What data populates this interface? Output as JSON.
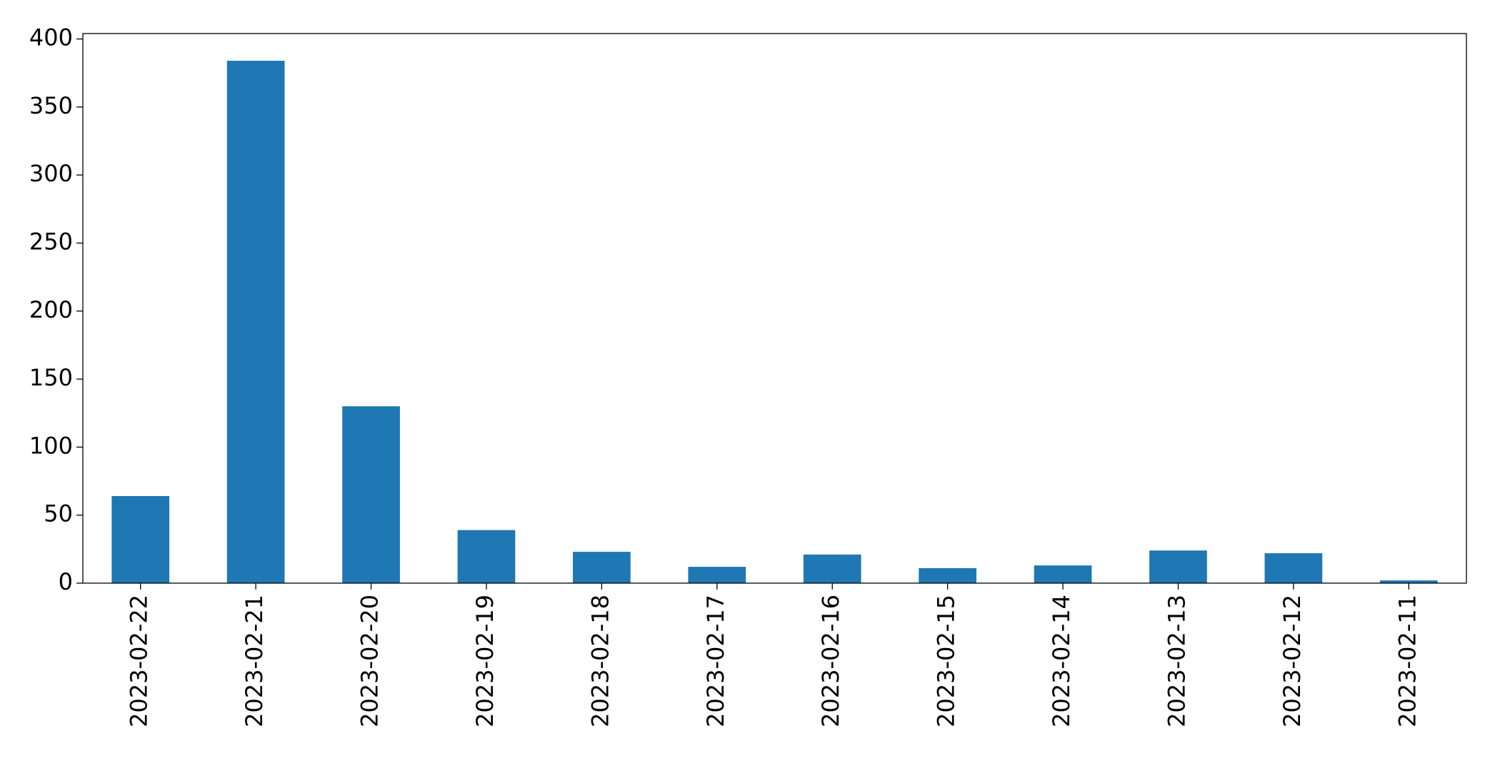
{
  "chart_data": {
    "type": "bar",
    "categories": [
      "2023-02-22",
      "2023-02-21",
      "2023-02-20",
      "2023-02-19",
      "2023-02-18",
      "2023-02-17",
      "2023-02-16",
      "2023-02-15",
      "2023-02-14",
      "2023-02-13",
      "2023-02-12",
      "2023-02-11"
    ],
    "values": [
      64,
      384,
      130,
      39,
      23,
      12,
      21,
      11,
      13,
      24,
      22,
      2
    ],
    "color": "#1f77b4",
    "ylim": [
      0,
      404
    ],
    "yticks": [
      0,
      50,
      100,
      150,
      200,
      250,
      300,
      350,
      400
    ],
    "grid": false
  }
}
